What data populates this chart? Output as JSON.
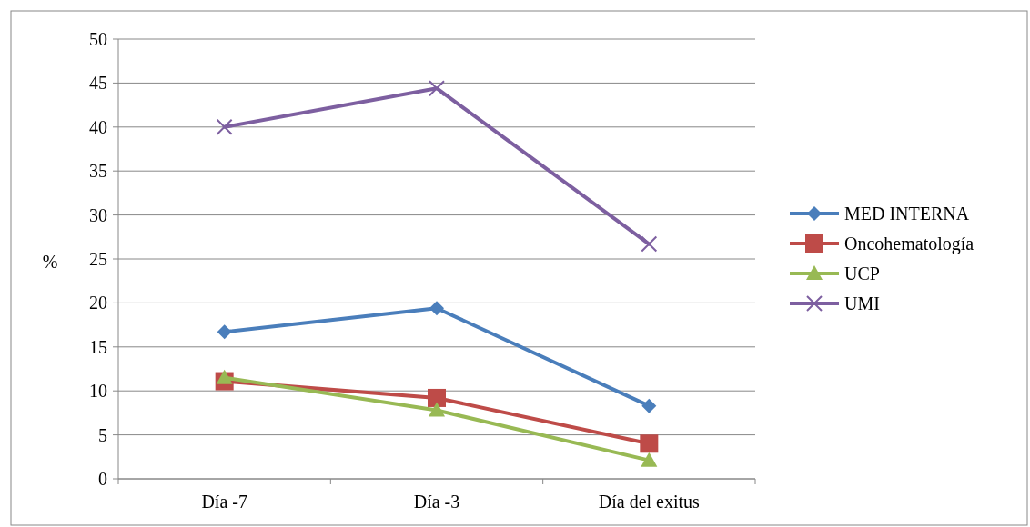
{
  "chart_data": {
    "type": "line",
    "categories": [
      "Día -7",
      "Día -3",
      "Día del exitus"
    ],
    "ylabel": "%",
    "ylim": [
      0,
      50
    ],
    "yticks": [
      0,
      5,
      10,
      15,
      20,
      25,
      30,
      35,
      40,
      45,
      50
    ],
    "grid": "y",
    "legend": "right",
    "series": [
      {
        "name": "MED INTERNA",
        "color": "#4a7ebb",
        "marker": "diamond",
        "values": [
          16.7,
          19.4,
          8.3
        ]
      },
      {
        "name": "Oncohematología",
        "color": "#be4b48",
        "marker": "square",
        "values": [
          11.1,
          9.2,
          4.0
        ]
      },
      {
        "name": "UCP",
        "color": "#98b954",
        "marker": "triangle",
        "values": [
          11.5,
          7.8,
          2.1
        ]
      },
      {
        "name": "UMI",
        "color": "#7d5fa0",
        "marker": "cross",
        "values": [
          40.0,
          44.4,
          26.7
        ]
      }
    ]
  }
}
